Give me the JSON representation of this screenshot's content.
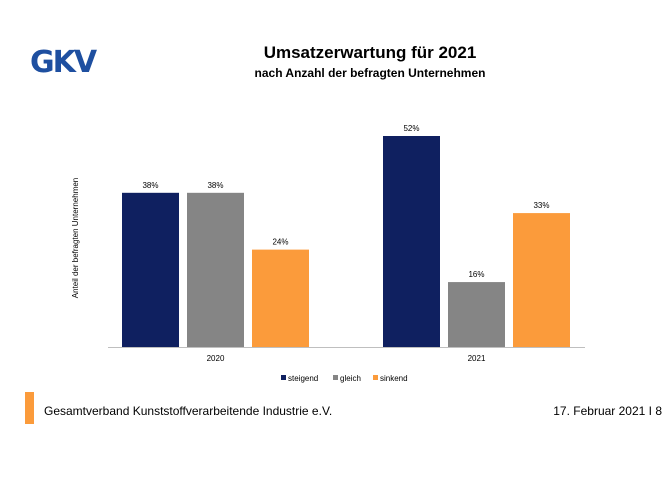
{
  "logo": {
    "text": "GKV"
  },
  "footer": {
    "organization": "Gesamtverband Kunststoffverarbeitende Industrie e.V.",
    "date_page": "17. Februar 2021 I 8"
  },
  "chart_data": {
    "type": "bar",
    "title": "Umsatzerwartung für 2021",
    "subtitle": "nach Anzahl der befragten Unternehmen",
    "categories": [
      "2020",
      "2021"
    ],
    "series": [
      {
        "name": "steigend",
        "values": [
          38,
          52
        ],
        "labels": [
          "38%",
          "52%"
        ],
        "color": "#0f2060"
      },
      {
        "name": "gleich",
        "values": [
          38,
          16
        ],
        "labels": [
          "38%",
          "16%"
        ],
        "color": "#858585"
      },
      {
        "name": "sinkend",
        "values": [
          24,
          33
        ],
        "labels": [
          "24%",
          "33%"
        ],
        "color": "#fb9b3b"
      }
    ],
    "ylabel": "Anteil der befragten Unternehmen",
    "xlabel": "",
    "ylim": [
      0,
      52
    ],
    "grid": false,
    "legend": "bottom"
  }
}
